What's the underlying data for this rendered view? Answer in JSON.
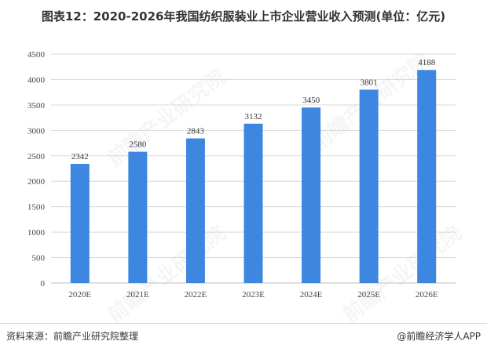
{
  "title": "图表12：2020-2026年我国纺织服装业上市企业营业收入预测(单位：亿元)",
  "source": "资料来源：前瞻产业研究院整理",
  "credit": "@前瞻经济学人APP",
  "watermark": "前瞻产业研究院",
  "colors": {
    "bar": "#3d87e0",
    "grid": "#d9d9d9",
    "axis": "#bfbfbf"
  },
  "chart_data": {
    "type": "bar",
    "categories": [
      "2020E",
      "2021E",
      "2022E",
      "2023E",
      "2024E",
      "2025E",
      "2026E"
    ],
    "values": [
      2342,
      2580,
      2843,
      3132,
      3450,
      3801,
      4188
    ],
    "yticks": [
      0,
      500,
      1000,
      1500,
      2000,
      2500,
      3000,
      3500,
      4000,
      4500
    ],
    "ylim": [
      0,
      4500
    ],
    "grid": true,
    "legend": "none",
    "xlabel": "",
    "ylabel": ""
  }
}
